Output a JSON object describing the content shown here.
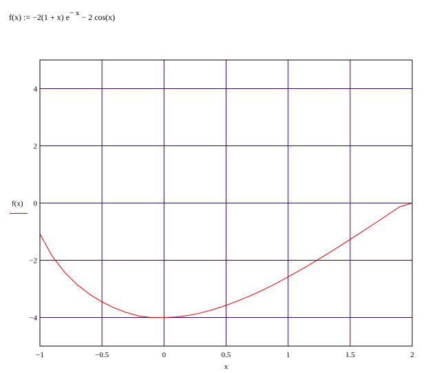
{
  "worksheet": {
    "formula": {
      "lhs": "f(x) := ",
      "body": "−2(1 + x) e",
      "exponent": "− x",
      "tail": " − 2 cos(x)"
    }
  },
  "chart_data": {
    "type": "line",
    "xlabel": "x",
    "ylabel": "f(x)",
    "xlim": [
      -1,
      2
    ],
    "ylim": [
      -5,
      5
    ],
    "grid": true,
    "x_ticks": [
      -1,
      -0.5,
      0,
      0.5,
      1,
      1.5,
      2
    ],
    "x_tick_labels": [
      "−1",
      "−0.5",
      "0",
      "0.5",
      "1",
      "1.5",
      "2"
    ],
    "y_ticks": [
      -4,
      -2,
      0,
      2,
      4
    ],
    "y_tick_labels": [
      "−4",
      "−2",
      "0",
      "2",
      "4"
    ],
    "series": [
      {
        "name": "f(x)",
        "color": "#e00000",
        "x": [
          -1,
          -0.9,
          -0.8,
          -0.7,
          -0.6,
          -0.5,
          -0.4,
          -0.3,
          -0.2,
          -0.1,
          0,
          0.1,
          0.2,
          0.3,
          0.4,
          0.5,
          0.6,
          0.7,
          0.8,
          0.9,
          1,
          1.1,
          1.2,
          1.3,
          1.4,
          1.5,
          1.6,
          1.7,
          1.8,
          1.9,
          2
        ],
        "y": [
          -1.081,
          -1.864,
          -2.427,
          -2.854,
          -3.188,
          -3.455,
          -3.666,
          -3.832,
          -3.952,
          -4.0,
          -4.0,
          -3.982,
          -3.925,
          -3.836,
          -3.716,
          -3.575,
          -3.411,
          -3.231,
          -3.032,
          -2.819,
          -2.577,
          -2.339,
          -2.083,
          -1.818,
          -1.546,
          -1.27,
          -0.99,
          -0.705,
          -0.419,
          -0.127,
          0
        ]
      }
    ],
    "colors": {
      "grid": "#3c0a52",
      "frame": "#000000",
      "line": "#e00000"
    }
  }
}
